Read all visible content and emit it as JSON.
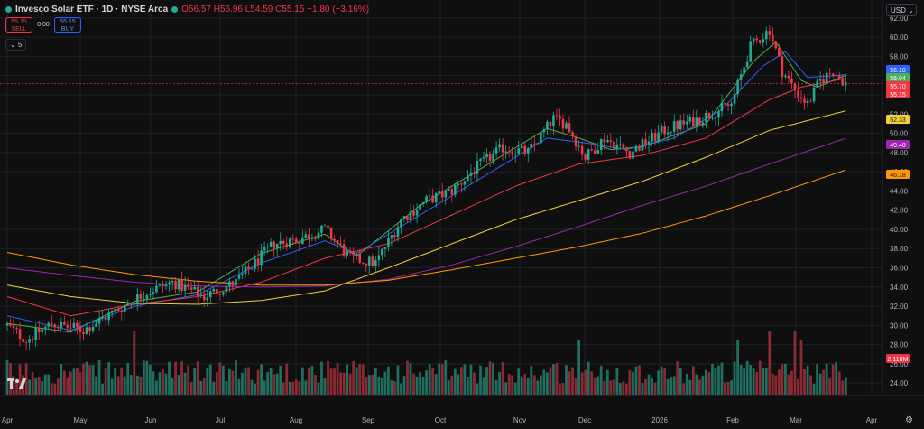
{
  "header": {
    "title": "Invesco Solar ETF · 1D · NYSE Arca",
    "ohlc": "O56.57 H56.96 L54.59 C55.15 −1.80 (−3.16%)"
  },
  "trade": {
    "sell_price": "55.15",
    "sell_label": "SELL",
    "spread": "0.00",
    "buy_price": "55.15",
    "buy_label": "BUY"
  },
  "indicator_toggle": "5",
  "currency": "USD",
  "colors": {
    "up": "#22ab94",
    "down": "#f23645",
    "ma_green": "#4caf50",
    "ma_blue": "#2962ff",
    "ma_red": "#f23645",
    "ma_yellow": "#f5d033",
    "ma_purple": "#9c27b0",
    "ma_orange": "#ff9800"
  },
  "chart_data": {
    "type": "candlestick",
    "x_labels": [
      "Apr",
      "May",
      "Jun",
      "Jul",
      "Aug",
      "Sep",
      "Oct",
      "Nov",
      "Dec",
      "2026",
      "Feb",
      "Mar",
      "Apr"
    ],
    "y_ticks": [
      24,
      26,
      28,
      30,
      32,
      34,
      36,
      38,
      40,
      42,
      44,
      46,
      48,
      50,
      52,
      54,
      56,
      58,
      60,
      62
    ],
    "ylim": [
      22.8,
      63.3
    ],
    "price_anchors": [
      [
        0,
        30
      ],
      [
        6,
        28.5
      ],
      [
        14,
        30.2
      ],
      [
        24,
        29.5
      ],
      [
        34,
        31.5
      ],
      [
        44,
        33.5
      ],
      [
        52,
        34.5
      ],
      [
        62,
        33
      ],
      [
        72,
        34.5
      ],
      [
        84,
        38.5
      ],
      [
        92,
        39
      ],
      [
        100,
        40
      ],
      [
        108,
        37
      ],
      [
        116,
        36.5
      ],
      [
        124,
        41
      ],
      [
        132,
        43
      ],
      [
        140,
        44
      ],
      [
        148,
        46.5
      ],
      [
        156,
        48.5
      ],
      [
        164,
        48
      ],
      [
        172,
        51.5
      ],
      [
        176,
        51
      ],
      [
        182,
        47.5
      ],
      [
        188,
        49.5
      ],
      [
        196,
        48
      ],
      [
        208,
        50.5
      ],
      [
        218,
        51.5
      ],
      [
        228,
        53
      ],
      [
        234,
        59
      ],
      [
        240,
        60.8
      ],
      [
        244,
        56.5
      ],
      [
        248,
        54.5
      ],
      [
        252,
        53
      ],
      [
        256,
        55.5
      ],
      [
        260,
        56.5
      ],
      [
        264,
        55.2
      ]
    ],
    "price_labels": [
      {
        "label": "56.10",
        "color": "#2962ff"
      },
      {
        "label": "56.04",
        "color": "#4caf50"
      },
      {
        "label": "55.70",
        "color": "#f23645"
      },
      {
        "label": "55.15",
        "color": "#f23645"
      },
      {
        "label": "52.33",
        "color": "#f5d033"
      },
      {
        "label": "49.48",
        "color": "#9c27b0"
      },
      {
        "label": "46.18",
        "color": "#ff9800"
      }
    ],
    "volume_label": "2.118M",
    "moving_averages": [
      {
        "color": "#4caf50",
        "label": "56.04",
        "anchors": [
          [
            0,
            30.2
          ],
          [
            20,
            29.3
          ],
          [
            40,
            32.5
          ],
          [
            60,
            33.5
          ],
          [
            80,
            37.5
          ],
          [
            100,
            39.5
          ],
          [
            110,
            37.2
          ],
          [
            130,
            42.5
          ],
          [
            150,
            46.5
          ],
          [
            170,
            50.5
          ],
          [
            180,
            49.5
          ],
          [
            190,
            48.3
          ],
          [
            200,
            48.6
          ],
          [
            220,
            51
          ],
          [
            235,
            57.5
          ],
          [
            242,
            59.5
          ],
          [
            250,
            55.5
          ],
          [
            255,
            54.8
          ],
          [
            264,
            56.04
          ]
        ]
      },
      {
        "color": "#2962ff",
        "label": "56.10",
        "anchors": [
          [
            0,
            31
          ],
          [
            20,
            29.5
          ],
          [
            40,
            32
          ],
          [
            60,
            33.2
          ],
          [
            80,
            36.5
          ],
          [
            100,
            38.8
          ],
          [
            110,
            37.5
          ],
          [
            130,
            41.5
          ],
          [
            150,
            45.5
          ],
          [
            170,
            49.5
          ],
          [
            182,
            49
          ],
          [
            195,
            48.3
          ],
          [
            210,
            49.5
          ],
          [
            225,
            52.5
          ],
          [
            238,
            57
          ],
          [
            245,
            58.5
          ],
          [
            252,
            55.8
          ],
          [
            264,
            56.1
          ]
        ]
      },
      {
        "color": "#f23645",
        "label": "55.70",
        "anchors": [
          [
            0,
            33
          ],
          [
            20,
            31
          ],
          [
            40,
            32.2
          ],
          [
            60,
            33
          ],
          [
            80,
            34.5
          ],
          [
            100,
            37
          ],
          [
            120,
            38.5
          ],
          [
            140,
            41.5
          ],
          [
            160,
            44.5
          ],
          [
            180,
            46.8
          ],
          [
            200,
            47.7
          ],
          [
            220,
            49.5
          ],
          [
            240,
            53.5
          ],
          [
            250,
            54.8
          ],
          [
            264,
            55.7
          ]
        ]
      },
      {
        "color": "#f5d033",
        "label": "52.33",
        "anchors": [
          [
            0,
            34.2
          ],
          [
            20,
            33
          ],
          [
            40,
            32.3
          ],
          [
            60,
            32.2
          ],
          [
            80,
            32.6
          ],
          [
            100,
            33.6
          ],
          [
            120,
            36
          ],
          [
            140,
            38.5
          ],
          [
            160,
            41
          ],
          [
            180,
            43
          ],
          [
            200,
            45
          ],
          [
            220,
            47.5
          ],
          [
            240,
            50.3
          ],
          [
            264,
            52.33
          ]
        ]
      },
      {
        "color": "#9c27b0",
        "label": "49.48",
        "anchors": [
          [
            0,
            36
          ],
          [
            20,
            35.2
          ],
          [
            40,
            34.5
          ],
          [
            60,
            34.1
          ],
          [
            80,
            34
          ],
          [
            100,
            34.1
          ],
          [
            120,
            34.8
          ],
          [
            140,
            36.3
          ],
          [
            160,
            38.2
          ],
          [
            180,
            40.3
          ],
          [
            200,
            42.5
          ],
          [
            220,
            44.5
          ],
          [
            240,
            46.8
          ],
          [
            264,
            49.48
          ]
        ]
      },
      {
        "color": "#ff9800",
        "label": "46.18",
        "anchors": [
          [
            0,
            37.6
          ],
          [
            20,
            36.3
          ],
          [
            40,
            35.3
          ],
          [
            60,
            34.6
          ],
          [
            80,
            34.2
          ],
          [
            100,
            34.2
          ],
          [
            120,
            34.7
          ],
          [
            140,
            35.8
          ],
          [
            160,
            37
          ],
          [
            180,
            38.2
          ],
          [
            200,
            39.6
          ],
          [
            220,
            41.4
          ],
          [
            240,
            43.5
          ],
          [
            264,
            46.18
          ]
        ]
      }
    ],
    "grid": true,
    "legend": "none"
  }
}
